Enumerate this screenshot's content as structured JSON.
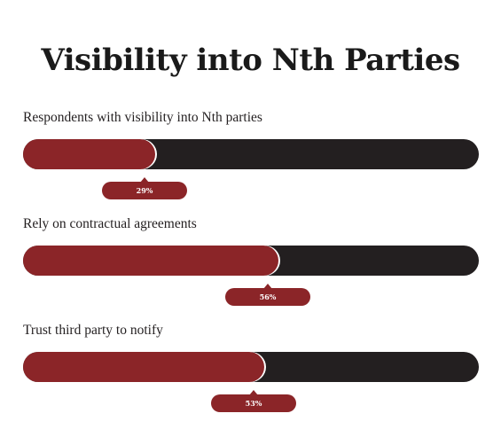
{
  "chart_data": {
    "type": "bar",
    "orientation": "horizontal",
    "title": "Visibility into Nth Parties",
    "categories": [
      "Respondents with visibility into Nth parties",
      "Rely on contractual agreements",
      "Trust third party to notify"
    ],
    "values": [
      29,
      56,
      53
    ],
    "value_labels": [
      "29%",
      "56%",
      "53%"
    ],
    "xlim": [
      0,
      100
    ],
    "unit": "%",
    "grid": false,
    "legend": "none",
    "colors": {
      "fill": "#8b2528",
      "track": "#231f20",
      "badge": "#8b2528",
      "badge_text": "#ffffff"
    }
  }
}
